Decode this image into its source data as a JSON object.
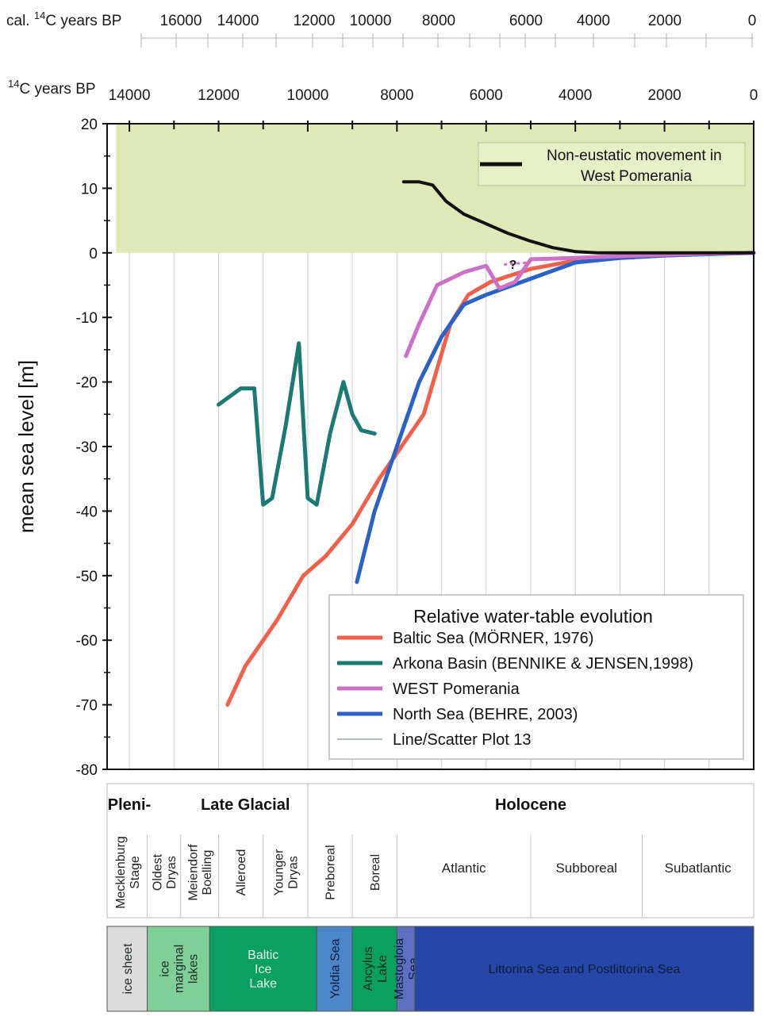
{
  "colors": {
    "baltic": "#f0604a",
    "arkona": "#1b7a73",
    "pomerania": "#cc70c8",
    "northsea": "#2a62c6",
    "noneustatic": "#111111",
    "plot13": "#9aa5a5",
    "shade": "#dfe9b8",
    "grid": "#c8ced6"
  },
  "cal_axis": {
    "label_pre": "cal. ",
    "label_sup": "14",
    "label_post": "C years BP",
    "ticks": [
      "16000",
      "14000",
      "12000",
      "10000",
      "8000",
      "6000",
      "4000",
      "2000",
      "0"
    ]
  },
  "c14_axis": {
    "label_sup": "14",
    "label_post": "C years BP",
    "ticks": [
      "14000",
      "12000",
      "10000",
      "8000",
      "6000",
      "4000",
      "2000",
      "0"
    ]
  },
  "chart_data": {
    "type": "line",
    "ylabel": "mean sea level [m]",
    "xlabel": "14C years BP",
    "x_reversed": true,
    "xlim": [
      14500,
      0
    ],
    "ylim": [
      -80,
      20
    ],
    "y_ticks": [
      20,
      10,
      0,
      -10,
      -20,
      -30,
      -40,
      -50,
      -60,
      -70,
      -80
    ],
    "shaded_band": {
      "from": 0,
      "to": 20
    },
    "question_mark": {
      "x": 5400,
      "y": -2.5,
      "text": "?"
    },
    "series": [
      {
        "key": "noneustatic",
        "name": "Non-eustatic movement in West Pomerania",
        "x": [
          7850,
          7500,
          7200,
          6900,
          6500,
          6000,
          5500,
          5000,
          4500,
          4000,
          3500,
          3000,
          0
        ],
        "y": [
          11,
          11,
          10.5,
          8,
          6,
          4.5,
          3,
          1.8,
          0.8,
          0.2,
          0,
          0,
          0
        ]
      },
      {
        "key": "baltic",
        "name": "Baltic Sea  (MÖRNER, 1976)",
        "x": [
          11800,
          11400,
          10700,
          10100,
          9600,
          9000,
          8400,
          7800,
          7400,
          7100,
          6800,
          6400,
          5900,
          5000,
          4000,
          3000,
          2000,
          1000,
          0
        ],
        "y": [
          -70,
          -64,
          -57,
          -50,
          -47,
          -42,
          -35,
          -29,
          -25,
          -18,
          -11,
          -6.5,
          -4.5,
          -2.5,
          -1.2,
          -0.8,
          -0.4,
          -0.2,
          0
        ]
      },
      {
        "key": "arkona",
        "name": "Arkona Basin (BENNIKE & JENSEN,1998)",
        "x": [
          12000,
          11500,
          11200,
          11000,
          10800,
          10500,
          10200,
          10000,
          9800,
          9500,
          9200,
          9000,
          8800,
          8500
        ],
        "y": [
          -23.5,
          -21,
          -21,
          -39,
          -38,
          -27,
          -14,
          -38,
          -39,
          -28,
          -20,
          -25,
          -27.5,
          -28
        ]
      },
      {
        "key": "pomerania",
        "name": "WEST Pomerania",
        "x": [
          7800,
          7500,
          7100,
          6500,
          6000,
          5700,
          5350,
          5000,
          4000,
          3000,
          2000,
          1000,
          0
        ],
        "y": [
          -16,
          -11,
          -5,
          -3,
          -2,
          -5.5,
          -4.5,
          -1,
          -0.8,
          -0.5,
          -0.3,
          -0.1,
          0
        ]
      },
      {
        "key": "northsea",
        "name": "North Sea  (BEHRE, 2003)",
        "x": [
          8900,
          8500,
          8000,
          7500,
          7000,
          6500,
          6000,
          5000,
          4000,
          3000,
          2000,
          1000,
          0
        ],
        "y": [
          -51,
          -40,
          -30,
          -20,
          -13,
          -8,
          -6.5,
          -4,
          -1.5,
          -0.8,
          -0.4,
          -0.2,
          0
        ]
      },
      {
        "key": "plot13",
        "name": "Line/Scatter Plot 13",
        "x": [],
        "y": []
      }
    ],
    "legend_title": "Relative water-table evolution"
  },
  "stages": {
    "groups": [
      {
        "label": "Pleni-",
        "x0": 14500,
        "x1": 13400
      },
      {
        "label": "Late Glacial",
        "x0": 13400,
        "x1": 10000
      },
      {
        "label": "Holocene",
        "x0": 10000,
        "x1": 0
      }
    ],
    "periods": [
      {
        "label": "Mecklenburg\nStage",
        "x0": 14500,
        "x1": 13600,
        "vertical": true
      },
      {
        "label": "Oldest\nDryas",
        "x0": 13600,
        "x1": 12850,
        "vertical": true
      },
      {
        "label": "Meiendorf\nBoelling",
        "x0": 12850,
        "x1": 12000,
        "vertical": true
      },
      {
        "label": "Alleroed",
        "x0": 12000,
        "x1": 11000,
        "vertical": true
      },
      {
        "label": "Younger\nDryas",
        "x0": 11000,
        "x1": 10000,
        "vertical": true
      },
      {
        "label": "Preboreal",
        "x0": 10000,
        "x1": 9000,
        "vertical": true
      },
      {
        "label": "Boreal",
        "x0": 9000,
        "x1": 8000,
        "vertical": true
      },
      {
        "label": "Atlantic",
        "x0": 8000,
        "x1": 5000,
        "vertical": false
      },
      {
        "label": "Subboreal",
        "x0": 5000,
        "x1": 2500,
        "vertical": false
      },
      {
        "label": "Subatlantic",
        "x0": 2500,
        "x1": 0,
        "vertical": false
      }
    ]
  },
  "phases": [
    {
      "label": "ice sheet",
      "x0": 14500,
      "x1": 13600,
      "color": "#dcdcdc",
      "text_color": "#1f2a2a",
      "vertical": true
    },
    {
      "label": "ice\nmarginal\nlakes",
      "x0": 13600,
      "x1": 12200,
      "color": "#7fcf98",
      "text_color": "#1f2a2a",
      "vertical": true
    },
    {
      "label": "Baltic\nIce\nLake",
      "x0": 12200,
      "x1": 9800,
      "color": "#0aa062",
      "text_color": "#e8f6ee",
      "vertical": false
    },
    {
      "label": "Yoldia Sea",
      "x0": 9800,
      "x1": 9000,
      "color": "#4b86c8",
      "text_color": "#0c1d3a",
      "vertical": true
    },
    {
      "label": "Ancylus\nLake",
      "x0": 9000,
      "x1": 8000,
      "color": "#0aa062",
      "text_color": "#0c2a1c",
      "vertical": true
    },
    {
      "label": "Mastogloia\nSea",
      "x0": 8000,
      "x1": 7600,
      "color": "#5f6fc0",
      "text_color": "#0c1d3a",
      "vertical": true
    },
    {
      "label": "Littorina Sea and Postlittorina Sea",
      "x0": 7600,
      "x1": 0,
      "color": "#2647a8",
      "text_color": "#0c1d3a",
      "vertical": false
    }
  ]
}
